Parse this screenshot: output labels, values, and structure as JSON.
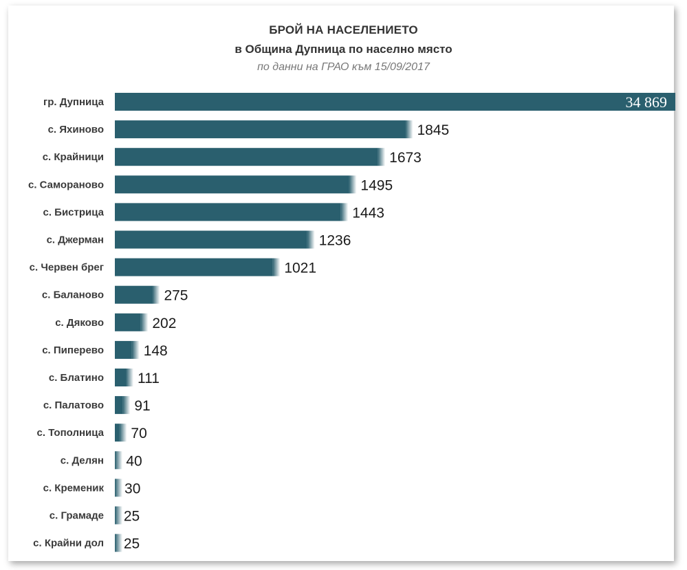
{
  "header": {
    "title": "БРОЙ НА НАСЕЛЕНИЕТО",
    "subtitle": "в Община Дупница по населно място",
    "source": "по данни на ГРАО към 15/09/2017"
  },
  "colors": {
    "bar": "#2a5f6e",
    "background": "#ffffff"
  },
  "chart_data": {
    "type": "bar",
    "orientation": "horizontal",
    "title": "БРОЙ НА НАСЕЛЕНИЕТО",
    "subtitle": "в Община Дупница по населно място",
    "note": "по данни на ГРАО към 15/09/2017",
    "categories": [
      "гр. Дупница",
      "с. Яхиново",
      "с. Крайници",
      "с. Самораново",
      "с. Бистрица",
      "с. Джерман",
      "с. Червен брег",
      "с. Баланово",
      "с. Дяково",
      "с. Пиперево",
      "с. Блатино",
      "с. Палатово",
      "с. Тополница",
      "с. Делян",
      "с. Кременик",
      "с. Грамаде",
      "с. Крайни дол"
    ],
    "values": [
      34869,
      1845,
      1673,
      1495,
      1443,
      1236,
      1021,
      275,
      202,
      148,
      111,
      91,
      70,
      40,
      30,
      25,
      25
    ],
    "value_labels": [
      "34 869",
      "1845",
      "1673",
      "1495",
      "1443",
      "1236",
      "1021",
      "275",
      "202",
      "148",
      "111",
      "91",
      "70",
      "40",
      "30",
      "25",
      "25"
    ],
    "grid": false,
    "legend": "none"
  }
}
